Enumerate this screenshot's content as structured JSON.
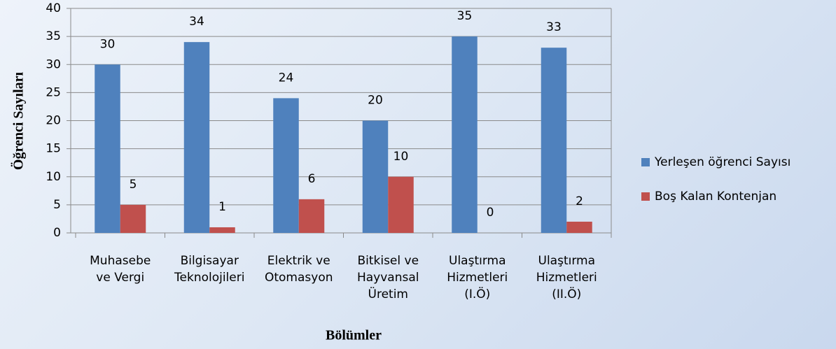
{
  "chart_data": {
    "type": "bar",
    "x_label": "Bölümler",
    "y_label": "Öğrenci Sayıları",
    "categories": [
      [
        "Muhasebe",
        "ve Vergi"
      ],
      [
        "Bilgisayar",
        "Teknolojileri"
      ],
      [
        "Elektrik ve",
        "Otomasyon"
      ],
      [
        "Bitkisel ve",
        "Hayvansal",
        "Üretim"
      ],
      [
        "Ulaştırma",
        "Hizmetleri",
        "(I.Ö)"
      ],
      [
        "Ulaştırma",
        "Hizmetleri",
        "(II.Ö)"
      ]
    ],
    "series": [
      {
        "name": "Yerleşen öğrenci Sayısı",
        "color": "#4f81bd",
        "values": [
          30,
          34,
          24,
          20,
          35,
          33
        ]
      },
      {
        "name": "Boş Kalan Kontenjan",
        "color": "#c0504d",
        "values": [
          5,
          1,
          6,
          10,
          0,
          2
        ]
      }
    ],
    "ylim": [
      0,
      40
    ],
    "yticks": [
      0,
      5,
      10,
      15,
      20,
      25,
      30,
      35,
      40
    ],
    "grid": true,
    "legend": "right"
  }
}
